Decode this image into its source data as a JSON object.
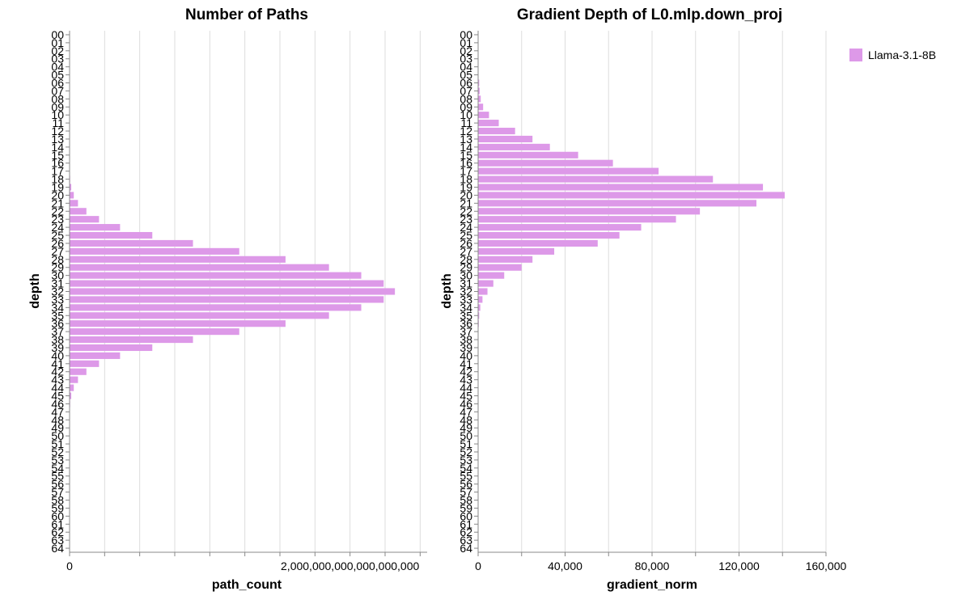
{
  "chart_data": [
    {
      "type": "bar",
      "orientation": "horizontal",
      "title": "Number of Paths",
      "xlabel": "path_count",
      "ylabel": "depth",
      "xlim": [
        0,
        2550000000000000000
      ],
      "x_ticks": [
        {
          "value": 0,
          "label": "0"
        },
        {
          "value": 250000000000000000,
          "label": ""
        },
        {
          "value": 500000000000000000,
          "label": ""
        },
        {
          "value": 750000000000000000,
          "label": ""
        },
        {
          "value": 1000000000000000000,
          "label": ""
        },
        {
          "value": 1250000000000000000,
          "label": ""
        },
        {
          "value": 1500000000000000000,
          "label": ""
        },
        {
          "value": 1750000000000000000,
          "label": ""
        },
        {
          "value": 2000000000000000000,
          "label": "2,000,000,000,000,000,000"
        },
        {
          "value": 2250000000000000000,
          "label": ""
        },
        {
          "value": 2500000000000000000,
          "label": ""
        }
      ],
      "categories": [
        "00",
        "01",
        "02",
        "03",
        "04",
        "05",
        "06",
        "07",
        "08",
        "09",
        "10",
        "11",
        "12",
        "13",
        "14",
        "15",
        "16",
        "17",
        "18",
        "19",
        "20",
        "21",
        "22",
        "23",
        "24",
        "25",
        "26",
        "27",
        "28",
        "29",
        "30",
        "31",
        "32",
        "33",
        "34",
        "35",
        "36",
        "37",
        "38",
        "39",
        "40",
        "41",
        "42",
        "43",
        "44",
        "45",
        "46",
        "47",
        "48",
        "49",
        "50",
        "51",
        "52",
        "53",
        "54",
        "55",
        "56",
        "57",
        "58",
        "59",
        "60",
        "61",
        "62",
        "63",
        "64"
      ],
      "series": [
        {
          "name": "Llama-3.1-8B",
          "values": [
            0,
            0,
            0,
            0,
            0,
            0,
            0,
            0,
            0,
            0,
            0,
            0,
            0,
            0,
            0,
            0,
            0,
            0,
            4000000000000000,
            12000000000000000,
            30000000000000000,
            60000000000000000,
            120000000000000000,
            210000000000000000,
            360000000000000000,
            590000000000000000,
            880000000000000000,
            1210000000000000000,
            1540000000000000000,
            1850000000000000000,
            2080000000000000000,
            2240000000000000000,
            2320000000000000000,
            2240000000000000000,
            2080000000000000000,
            1850000000000000000,
            1540000000000000000,
            1210000000000000000,
            880000000000000000,
            590000000000000000,
            360000000000000000,
            210000000000000000,
            120000000000000000,
            60000000000000000,
            30000000000000000,
            12000000000000000,
            4000000000000000,
            0,
            0,
            0,
            0,
            0,
            0,
            0,
            0,
            0,
            0,
            0,
            0,
            0,
            0,
            0,
            0,
            0,
            0
          ]
        }
      ],
      "color": "#dd99e8"
    },
    {
      "type": "bar",
      "orientation": "horizontal",
      "title": "Gradient Depth of L0.mlp.down_proj",
      "xlabel": "gradient_norm",
      "ylabel": "depth",
      "xlim": [
        0,
        160000
      ],
      "x_ticks": [
        {
          "value": 0,
          "label": "0"
        },
        {
          "value": 20000,
          "label": ""
        },
        {
          "value": 40000,
          "label": "40,000"
        },
        {
          "value": 60000,
          "label": ""
        },
        {
          "value": 80000,
          "label": "80,000"
        },
        {
          "value": 100000,
          "label": ""
        },
        {
          "value": 120000,
          "label": "120,000"
        },
        {
          "value": 140000,
          "label": ""
        },
        {
          "value": 160000,
          "label": "160,000"
        }
      ],
      "categories": [
        "00",
        "01",
        "02",
        "03",
        "04",
        "05",
        "06",
        "07",
        "08",
        "09",
        "10",
        "11",
        "12",
        "13",
        "14",
        "15",
        "16",
        "17",
        "18",
        "19",
        "20",
        "21",
        "22",
        "23",
        "24",
        "25",
        "26",
        "27",
        "28",
        "29",
        "30",
        "31",
        "32",
        "33",
        "34",
        "35",
        "36",
        "37",
        "38",
        "39",
        "40",
        "41",
        "42",
        "43",
        "44",
        "45",
        "46",
        "47",
        "48",
        "49",
        "50",
        "51",
        "52",
        "53",
        "54",
        "55",
        "56",
        "57",
        "58",
        "59",
        "60",
        "61",
        "62",
        "63",
        "64"
      ],
      "series": [
        {
          "name": "Llama-3.1-8B",
          "values": [
            0,
            0,
            0,
            0,
            0,
            0,
            500,
            700,
            1200,
            2300,
            5000,
            9500,
            17000,
            25000,
            33000,
            46000,
            62000,
            83000,
            108000,
            131000,
            141000,
            128000,
            102000,
            91000,
            75000,
            65000,
            55000,
            35000,
            25000,
            20000,
            12000,
            7000,
            4300,
            2000,
            1000,
            500,
            300,
            100,
            50,
            0,
            0,
            0,
            0,
            0,
            0,
            0,
            0,
            0,
            0,
            0,
            0,
            0,
            0,
            0,
            0,
            0,
            0,
            0,
            0,
            0,
            0,
            0,
            0,
            0,
            0
          ]
        }
      ],
      "color": "#dd99e8"
    }
  ],
  "legend": {
    "items": [
      {
        "label": "Llama-3.1-8B",
        "color": "#dd99e8"
      }
    ],
    "position": "top-right"
  }
}
